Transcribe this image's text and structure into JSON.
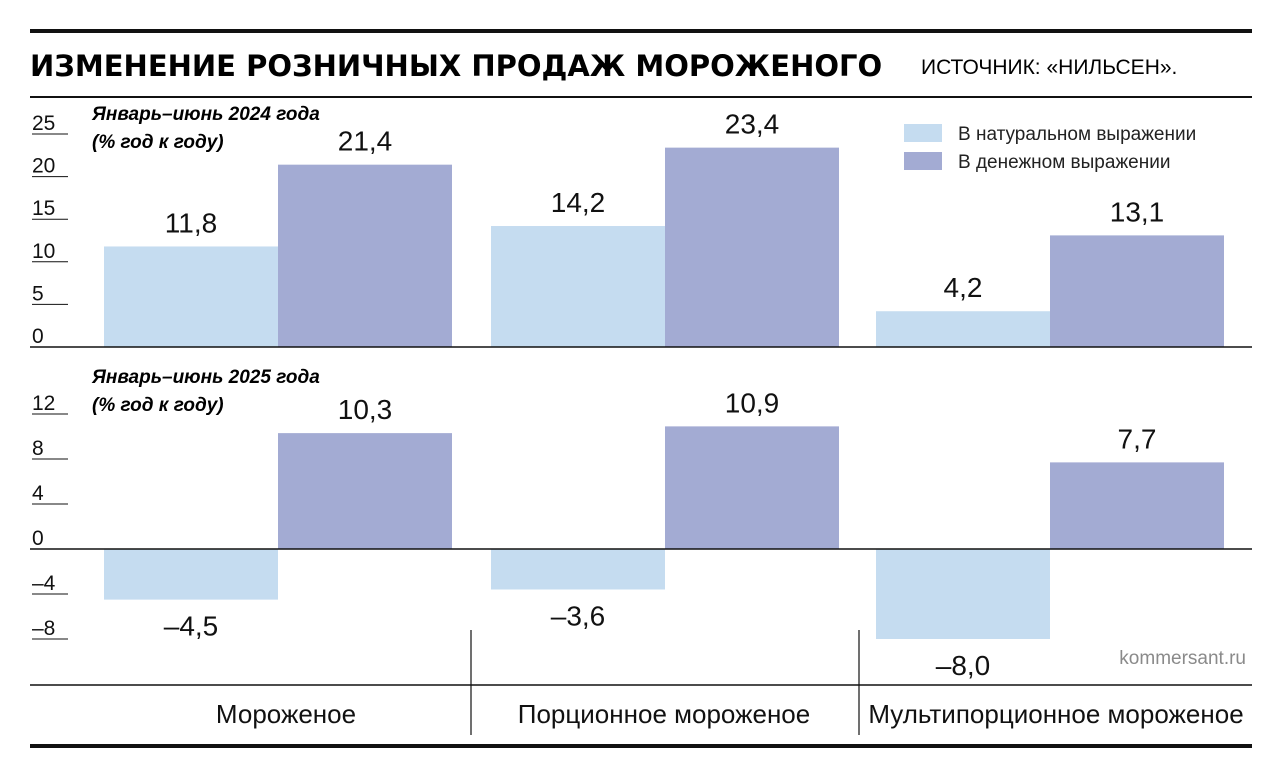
{
  "header": {
    "title": "ИЗМЕНЕНИЕ РОЗНИЧНЫХ ПРОДАЖ МОРОЖЕНОГО",
    "source": "ИСТОЧНИК: «НИЛЬСЕН»."
  },
  "credit": "kommersant.ru",
  "colors": {
    "natural": "#c5dcf0",
    "monetary": "#a3abd3",
    "rule": "#111111"
  },
  "chart_data": {
    "type": "bar",
    "categories": [
      "Мороженое",
      "Порционное мороженое",
      "Мультипорционное мороженое"
    ],
    "legend": {
      "position": "top-right",
      "entries": [
        "В натуральном выражении",
        "В денежном выражении"
      ]
    },
    "panels": [
      {
        "subtitle_lines": [
          "Январь–июнь 2024 года",
          "(% год к году)"
        ],
        "ylim": [
          0,
          25
        ],
        "yticks": [
          0,
          5,
          10,
          15,
          20,
          25
        ],
        "ytick_labels": [
          "0",
          "5",
          "10",
          "15",
          "20",
          "25"
        ],
        "series": [
          {
            "name": "В натуральном выражении",
            "values": [
              11.8,
              14.2,
              4.2
            ],
            "labels": [
              "11,8",
              "14,2",
              "4,2"
            ]
          },
          {
            "name": "В денежном выражении",
            "values": [
              21.4,
              23.4,
              13.1
            ],
            "labels": [
              "21,4",
              "23,4",
              "13,1"
            ]
          }
        ]
      },
      {
        "subtitle_lines": [
          "Январь–июнь 2025 года",
          "(% год к году)"
        ],
        "ylim": [
          -8,
          12
        ],
        "yticks": [
          -8,
          -4,
          0,
          4,
          8,
          12
        ],
        "ytick_labels": [
          "–8",
          "–4",
          "0",
          "4",
          "8",
          "12"
        ],
        "series": [
          {
            "name": "В натуральном выражении",
            "values": [
              -4.5,
              -3.6,
              -8.0
            ],
            "labels": [
              "–4,5",
              "–3,6",
              "–8,0"
            ]
          },
          {
            "name": "В денежном выражении",
            "values": [
              10.3,
              10.9,
              7.7
            ],
            "labels": [
              "10,3",
              "10,9",
              "7,7"
            ]
          }
        ]
      }
    ]
  }
}
